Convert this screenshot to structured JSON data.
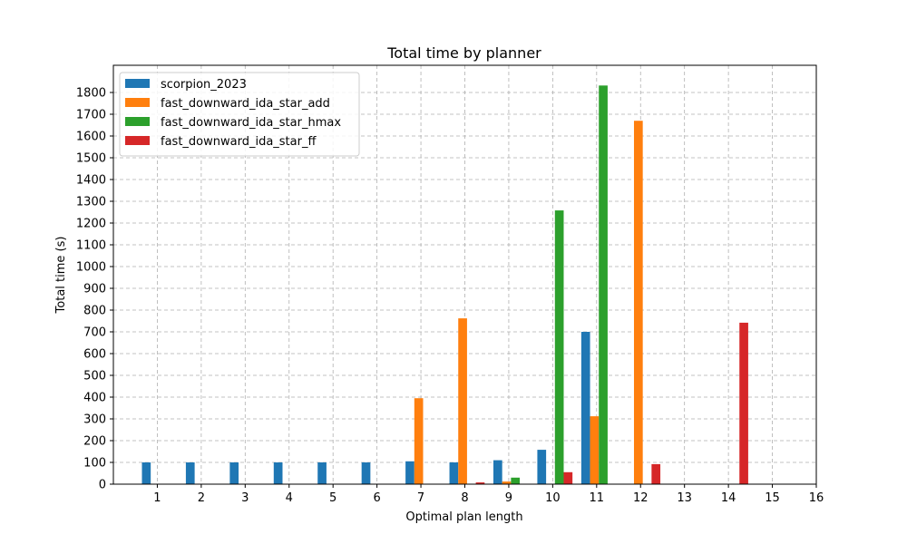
{
  "chart_data": {
    "type": "bar",
    "title": "Total time by planner",
    "xlabel": "Optimal plan length",
    "ylabel": "Total time (s)",
    "x_ticks": [
      1,
      2,
      3,
      4,
      5,
      6,
      7,
      8,
      9,
      10,
      11,
      12,
      13,
      14,
      15,
      16
    ],
    "y_ticks": [
      0,
      100,
      200,
      300,
      400,
      500,
      600,
      700,
      800,
      900,
      1000,
      1100,
      1200,
      1300,
      1400,
      1500,
      1600,
      1700,
      1800
    ],
    "xlim": [
      0,
      16
    ],
    "ylim": [
      0,
      1925
    ],
    "grid": true,
    "legend_position": "top-left",
    "series": [
      {
        "name": "scorpion_2023",
        "color": "#1f77b4",
        "points": [
          [
            1,
            100
          ],
          [
            2,
            100
          ],
          [
            3,
            100
          ],
          [
            4,
            100
          ],
          [
            5,
            100
          ],
          [
            6,
            100
          ],
          [
            7,
            105
          ],
          [
            8,
            100
          ],
          [
            9,
            110
          ],
          [
            10,
            158
          ],
          [
            11,
            700
          ]
        ]
      },
      {
        "name": "fast_downward_ida_star_add",
        "color": "#ff7f0e",
        "points": [
          [
            7,
            395
          ],
          [
            8,
            762
          ],
          [
            9,
            12
          ],
          [
            11,
            312
          ],
          [
            12,
            1670
          ]
        ]
      },
      {
        "name": "fast_downward_ida_star_hmax",
        "color": "#2ca02c",
        "points": [
          [
            9,
            30
          ],
          [
            10,
            1258
          ],
          [
            11,
            1832
          ]
        ]
      },
      {
        "name": "fast_downward_ida_star_ff",
        "color": "#d62728",
        "points": [
          [
            8,
            8
          ],
          [
            10,
            55
          ],
          [
            12,
            92
          ],
          [
            14,
            742
          ]
        ]
      }
    ]
  }
}
